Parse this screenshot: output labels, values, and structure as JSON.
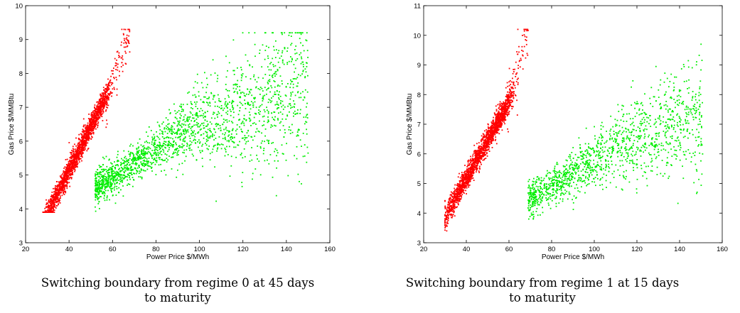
{
  "chart_data": [
    {
      "type": "scatter",
      "title": "",
      "xlabel": "Power Price $/MWh",
      "ylabel": "Gas Price $/MMBtu",
      "xlim": [
        20,
        160
      ],
      "ylim": [
        3,
        10
      ],
      "xticks": [
        20,
        40,
        60,
        80,
        100,
        120,
        140,
        160
      ],
      "yticks": [
        3,
        4,
        5,
        6,
        7,
        8,
        9,
        10
      ],
      "grid": false,
      "colors": {
        "regime_red": "#ff0000",
        "regime_green": "#00ee00"
      },
      "series": [
        {
          "color": "red",
          "n": 2000,
          "x_range": [
            28,
            68
          ],
          "y_range": [
            3.9,
            9.3
          ]
        },
        {
          "color": "green",
          "n": 2000,
          "x_range": [
            52,
            150
          ],
          "y_range": [
            3.8,
            9.2
          ]
        }
      ],
      "caption": "Switching boundary from regime 0 at 45 days to maturity"
    },
    {
      "type": "scatter",
      "title": "",
      "xlabel": "Power Price $/MWh",
      "ylabel": "Gas Price $/MMBtu",
      "xlim": [
        20,
        160
      ],
      "ylim": [
        3,
        11
      ],
      "xticks": [
        20,
        40,
        60,
        80,
        100,
        120,
        140,
        160
      ],
      "yticks": [
        3,
        4,
        5,
        6,
        7,
        8,
        9,
        10,
        11
      ],
      "grid": false,
      "colors": {
        "regime_red": "#ff0000",
        "regime_green": "#00ee00"
      },
      "series": [
        {
          "color": "red",
          "n": 2000,
          "x_range": [
            30,
            69
          ],
          "y_range": [
            3.4,
            10.2
          ]
        },
        {
          "color": "green",
          "n": 1400,
          "x_range": [
            68,
            151
          ],
          "y_range": [
            3.8,
            9.7
          ]
        }
      ],
      "caption": "Switching boundary from regime 1 at 15 days to maturity"
    }
  ]
}
